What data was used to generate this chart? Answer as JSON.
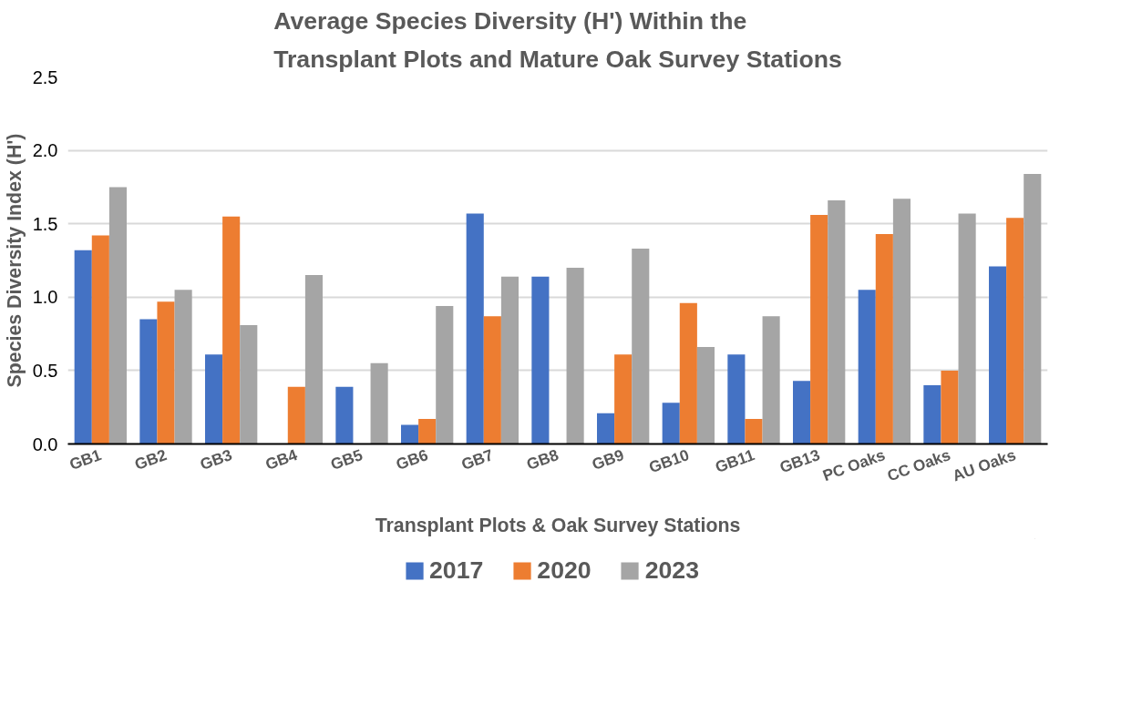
{
  "chart_data": {
    "type": "bar",
    "title": "Average Species Diversity (H') Within the\nTransplant Plots and Mature Oak Survey Stations",
    "xlabel": "Transplant Plots & Oak Survey Stations",
    "ylabel": "Species Diversity Index (H')",
    "categories": [
      "GB1",
      "GB2",
      "GB3",
      "GB4",
      "GB5",
      "GB6",
      "GB7",
      "GB8",
      "GB9",
      "GB10",
      "GB11",
      "GB13",
      "PC Oaks",
      "CC Oaks",
      "AU Oaks"
    ],
    "series": [
      {
        "name": "2017",
        "color": "#4472c4",
        "values": [
          1.32,
          0.85,
          0.61,
          null,
          0.39,
          0.13,
          1.57,
          1.14,
          0.21,
          0.28,
          0.61,
          0.43,
          1.05,
          0.4,
          1.21
        ]
      },
      {
        "name": "2020",
        "color": "#ed7d31",
        "values": [
          1.42,
          0.97,
          1.55,
          0.39,
          null,
          0.17,
          0.87,
          null,
          0.61,
          0.96,
          0.17,
          1.56,
          1.43,
          0.5,
          1.54
        ]
      },
      {
        "name": "2023",
        "color": "#a5a5a5",
        "values": [
          1.75,
          1.05,
          0.81,
          1.15,
          0.55,
          0.94,
          1.14,
          1.2,
          1.33,
          0.66,
          0.87,
          1.66,
          1.67,
          1.57,
          1.84
        ]
      }
    ],
    "ylim": [
      0,
      2.5
    ],
    "yticks": [
      {
        "value": 0,
        "label": "0.0"
      },
      {
        "value": 0.5,
        "label": "0.5"
      },
      {
        "value": 1,
        "label": "1.0"
      },
      {
        "value": 1.5,
        "label": "1.5"
      },
      {
        "value": 2,
        "label": "2.0"
      },
      {
        "value": 2.5,
        "label": "2.5"
      }
    ],
    "grid": "y",
    "legend": "bottom"
  }
}
